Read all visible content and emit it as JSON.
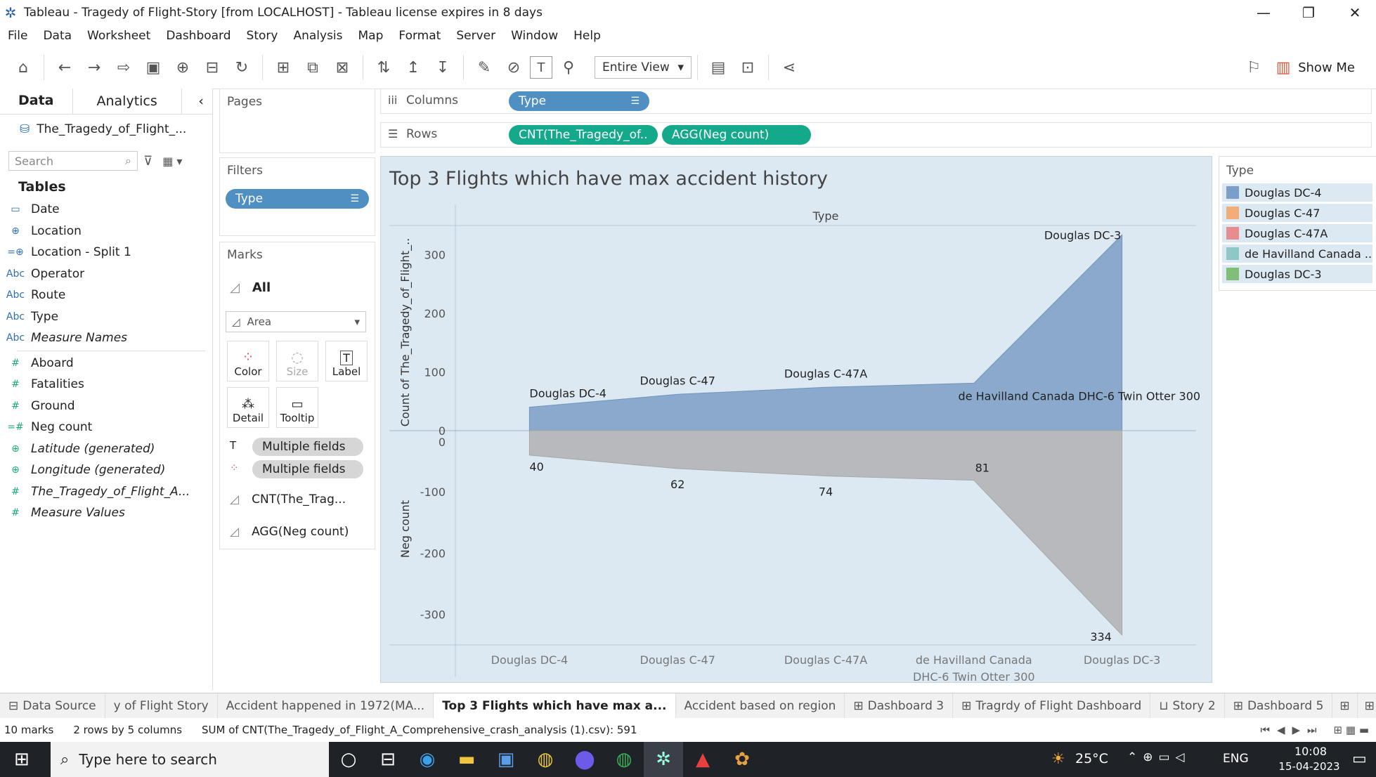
{
  "window": {
    "title": "Tableau - Tragedy of Flight-Story [from LOCALHOST] - Tableau license expires in 8 days",
    "minimize": "—",
    "restore": "❐",
    "close": "✕"
  },
  "menu": [
    "File",
    "Data",
    "Worksheet",
    "Dashboard",
    "Story",
    "Analysis",
    "Map",
    "Format",
    "Server",
    "Window",
    "Help"
  ],
  "toolbar": {
    "view_mode": "Entire View",
    "show_me": "Show Me"
  },
  "datapane": {
    "tabs": [
      "Data",
      "Analytics"
    ],
    "datasource": "The_Tragedy_of_Flight_...",
    "search_placeholder": "Search",
    "tables_heading": "Tables",
    "dimensions": [
      {
        "icon": "▭",
        "label": "Date",
        "type": "blue"
      },
      {
        "icon": "⊕",
        "label": "Location",
        "type": "blue"
      },
      {
        "icon": "=⊕",
        "label": "Location - Split 1",
        "type": "blue"
      },
      {
        "icon": "Abc",
        "label": "Operator",
        "type": "blue"
      },
      {
        "icon": "Abc",
        "label": "Route",
        "type": "blue"
      },
      {
        "icon": "Abc",
        "label": "Type",
        "type": "blue"
      },
      {
        "icon": "Abc",
        "label": "Measure Names",
        "type": "blue",
        "italic": true
      }
    ],
    "measures": [
      {
        "icon": "#",
        "label": "Aboard",
        "type": "green"
      },
      {
        "icon": "#",
        "label": "Fatalities",
        "type": "green"
      },
      {
        "icon": "#",
        "label": "Ground",
        "type": "green"
      },
      {
        "icon": "=#",
        "label": "Neg count",
        "type": "green"
      },
      {
        "icon": "⊕",
        "label": "Latitude (generated)",
        "type": "green",
        "italic": true
      },
      {
        "icon": "⊕",
        "label": "Longitude (generated)",
        "type": "green",
        "italic": true
      },
      {
        "icon": "#",
        "label": "The_Tragedy_of_Flight_A...",
        "type": "green",
        "italic": true
      },
      {
        "icon": "#",
        "label": "Measure Values",
        "type": "green",
        "italic": true
      }
    ]
  },
  "shelves": {
    "pages_label": "Pages",
    "filters_label": "Filters",
    "filter_pill": "Type",
    "marks_label": "Marks",
    "marks_all": "All",
    "mark_type": "Area",
    "mark_buttons": [
      "Color",
      "Size",
      "Label",
      "Detail",
      "Tooltip"
    ],
    "mark_fields": [
      "Multiple fields",
      "Multiple fields"
    ],
    "mark_sections": [
      "CNT(The_Trag...",
      "AGG(Neg count)"
    ],
    "columns_label": "Columns",
    "columns_pill": "Type",
    "rows_label": "Rows",
    "rows_pills": [
      "CNT(The_Tragedy_of..",
      "AGG(Neg count)"
    ]
  },
  "legend": {
    "title": "Type",
    "items": [
      {
        "label": "Douglas DC-4",
        "color": "#7b9fc8"
      },
      {
        "label": "Douglas C-47",
        "color": "#f2ad78"
      },
      {
        "label": "Douglas C-47A",
        "color": "#e88c8f"
      },
      {
        "label": "de Havilland Canada ..",
        "color": "#8fc7c7"
      },
      {
        "label": "Douglas DC-3",
        "color": "#7fbf78"
      }
    ]
  },
  "chart_data": {
    "type": "area",
    "title": "Top 3 Flights which have max accident history",
    "column_header": "Type",
    "categories": [
      "Douglas DC-4",
      "Douglas C-47",
      "Douglas C-47A",
      "de Havilland Canada DHC-6 Twin Otter 300",
      "Douglas DC-3"
    ],
    "category_tick_labels": [
      [
        "Douglas DC-4"
      ],
      [
        "Douglas C-47"
      ],
      [
        "Douglas C-47A"
      ],
      [
        "de Havilland Canada",
        "DHC-6 Twin Otter 300"
      ],
      [
        "Douglas DC-3"
      ]
    ],
    "series": [
      {
        "name": "CNT(The_Tragedy_of_Flight_A_Comprehensive_crash_analysis (1).csv)",
        "values": [
          40,
          62,
          74,
          81,
          334
        ],
        "color": "#8aa9cc",
        "point_labels": [
          "Douglas DC-4",
          "Douglas C-47",
          "Douglas C-47A",
          "de Havilland Canada DHC-6 Twin Otter 300",
          "Douglas DC-3"
        ]
      },
      {
        "name": "AGG(Neg count)",
        "values": [
          -40,
          -62,
          -74,
          -81,
          -334
        ],
        "color": "#b7b9bc",
        "point_labels": [
          "40",
          "62",
          "74",
          "81",
          "334"
        ]
      }
    ],
    "top_axis": {
      "label": "Count of The_Tragedy_of_Flight_..",
      "ticks": [
        "300",
        "200",
        "100",
        "0"
      ],
      "ylim": [
        0,
        350
      ]
    },
    "bottom_axis": {
      "label": "Neg count",
      "ticks": [
        "0",
        "-100",
        "-200",
        "-300"
      ],
      "ylim": [
        -350,
        0
      ]
    }
  },
  "sheet_tabs": [
    {
      "label": "Data Source",
      "icon": "⊟"
    },
    {
      "label": "y of Flight Story"
    },
    {
      "label": "Accident happened in 1972(MA..."
    },
    {
      "label": "Top 3 Flights which have max a...",
      "active": true
    },
    {
      "label": "Accident based on region"
    },
    {
      "label": "Dashboard 3",
      "icon": "⊞"
    },
    {
      "label": "Tragrdy of Flight Dashboard",
      "icon": "⊞"
    },
    {
      "label": "Story 2",
      "icon": "⊔"
    },
    {
      "label": "Dashboard 5",
      "icon": "⊞"
    }
  ],
  "status": {
    "marks": "10 marks",
    "rows_cols": "2 rows by 5 columns",
    "sum": "SUM of CNT(The_Tragedy_of_Flight_A_Comprehensive_crash_analysis (1).csv): 591"
  },
  "taskbar": {
    "search_placeholder": "Type here to search",
    "weather": "25°C",
    "language": "ENG",
    "time": "10:08",
    "date": "15-04-2023"
  }
}
